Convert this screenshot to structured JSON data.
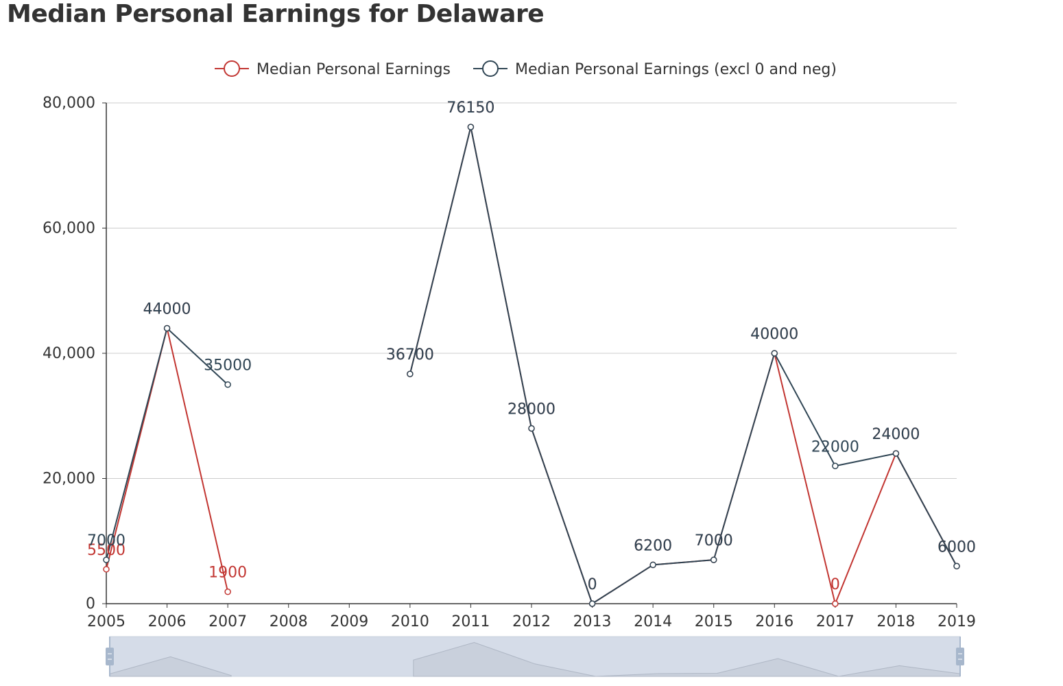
{
  "title": "Median Personal Earnings for Delaware",
  "chart_data": {
    "type": "line",
    "title": "Median Personal Earnings for Delaware",
    "xlabel": "",
    "ylabel": "",
    "categories": [
      "2005",
      "2006",
      "2007",
      "2008",
      "2009",
      "2010",
      "2011",
      "2012",
      "2013",
      "2014",
      "2015",
      "2016",
      "2017",
      "2018",
      "2019"
    ],
    "ylim": [
      0,
      80000
    ],
    "yticks": [
      0,
      20000,
      40000,
      60000,
      80000
    ],
    "ytick_labels": [
      "0",
      "20,000",
      "40,000",
      "60,000",
      "80,000"
    ],
    "grid": true,
    "legend_position": "top",
    "series": [
      {
        "name": "Median Personal Earnings",
        "color": "#c23531",
        "values": [
          5500,
          44000,
          1900,
          null,
          null,
          36700,
          76150,
          28000,
          0,
          6200,
          7000,
          40000,
          0,
          24000,
          6000
        ],
        "labels": [
          "5500",
          "44000",
          "1900",
          null,
          null,
          "36700",
          "76150",
          "28000",
          "0",
          "6200",
          "7000",
          "40000",
          "0",
          "24000",
          "6000"
        ]
      },
      {
        "name": "Median Personal Earnings (excl 0 and neg)",
        "color": "#2f4554",
        "values": [
          7000,
          44000,
          35000,
          null,
          null,
          36700,
          76150,
          28000,
          0,
          6200,
          7000,
          40000,
          22000,
          24000,
          6000
        ],
        "labels": [
          "7000",
          "44000",
          "35000",
          null,
          null,
          "36700",
          "76150",
          "28000",
          "0",
          "6200",
          "7000",
          "40000",
          "22000",
          "24000",
          "6000"
        ]
      }
    ],
    "data_zoom": {
      "range": [
        0,
        100
      ],
      "handle_color": "#a7b7cc",
      "fill_color": "#d5dce8"
    }
  }
}
